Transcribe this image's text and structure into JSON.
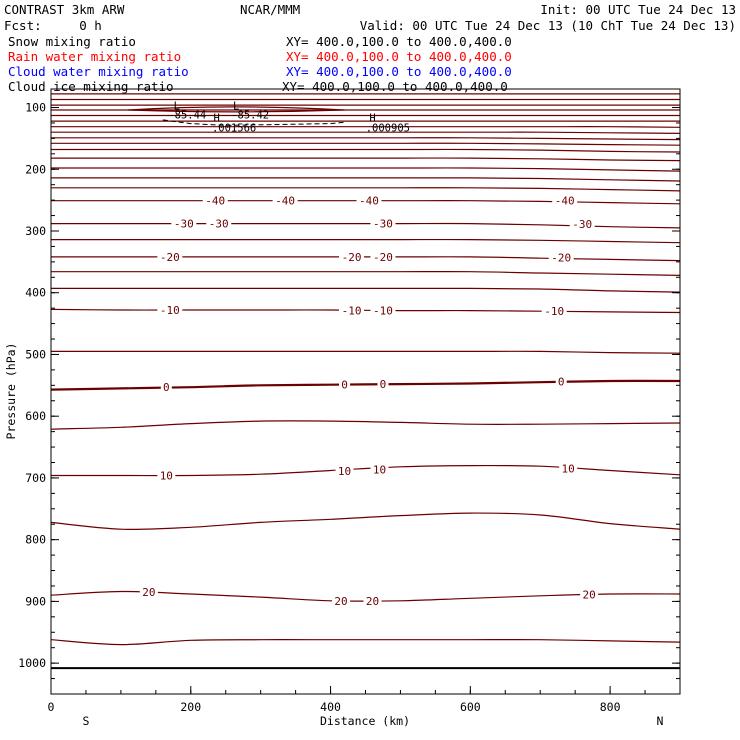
{
  "header": {
    "model": "CONTRAST  3km ARW",
    "center": "NCAR/MMM",
    "init": "Init: 00 UTC Tue 24 Dec 13",
    "fcst": "Fcst:     0 h",
    "valid": "Valid: 00 UTC Tue 24 Dec 13 (10 ChT Tue 24 Dec 13)",
    "fields": [
      {
        "name": "Snow mixing ratio",
        "xy": "XY= 400.0,100.0 to 400.0,400.0",
        "color": "#000000"
      },
      {
        "name": "Rain water mixing ratio",
        "xy": "XY= 400.0,100.0 to 400.0,400.0",
        "color": "#ff0000"
      },
      {
        "name": "Cloud water mixing ratio",
        "xy": "XY= 400.0,100.0 to 400.0,400.0",
        "color": "#0000ff"
      },
      {
        "name": "Cloud ice mixing ratio",
        "xy": "XY= 400.0,100.0 to 400.0,400.0",
        "color": "#000000"
      }
    ]
  },
  "colors": {
    "contour": "#6b0000",
    "axis": "#000000"
  },
  "chart_data": {
    "type": "line",
    "xlabel": "Distance (km)",
    "ylabel": "Pressure (hPa)",
    "xlim": [
      0,
      900
    ],
    "ylim": [
      1050,
      70
    ],
    "x_ticks": [
      "0",
      "200",
      "400",
      "600",
      "800"
    ],
    "x_tick_values": [
      0,
      200,
      400,
      600,
      800
    ],
    "y_ticks": [
      "100",
      "200",
      "300",
      "400",
      "500",
      "600",
      "700",
      "800",
      "900",
      "1000"
    ],
    "y_tick_values": [
      100,
      200,
      300,
      400,
      500,
      600,
      700,
      800,
      900,
      1000
    ],
    "direction_labels": {
      "left": "S",
      "right": "N"
    },
    "surface_pressure": 1008,
    "isotherm_x": [
      0,
      100,
      200,
      300,
      400,
      500,
      600,
      700,
      800,
      900
    ],
    "isotherms": [
      {
        "label": "",
        "p": [
          78,
          78,
          78,
          78,
          78,
          78,
          78,
          78,
          78,
          78
        ]
      },
      {
        "label": "",
        "p": [
          87,
          87,
          87,
          87,
          87,
          87,
          87,
          87,
          87,
          87
        ]
      },
      {
        "label": "",
        "p": [
          96,
          96,
          96,
          96,
          96,
          96,
          96,
          96,
          96,
          96
        ]
      },
      {
        "label": "",
        "p": [
          104,
          104,
          104,
          104,
          104,
          104,
          104,
          104,
          104,
          104
        ]
      },
      {
        "label": "",
        "p": [
          113,
          113,
          113,
          113,
          113,
          113,
          113,
          113,
          113,
          113
        ]
      },
      {
        "label": "",
        "p": [
          122,
          122,
          122,
          122,
          122,
          122,
          122,
          122,
          122,
          122
        ]
      },
      {
        "label": "",
        "p": [
          131,
          131,
          131,
          131,
          131,
          131,
          131,
          131,
          131,
          132
        ]
      },
      {
        "label": "",
        "p": [
          140,
          140,
          140,
          140,
          140,
          140,
          140,
          140,
          141,
          142
        ]
      },
      {
        "label": "",
        "p": [
          149,
          149,
          149,
          149,
          149,
          149,
          149,
          150,
          151,
          152
        ]
      },
      {
        "label": "",
        "p": [
          158,
          158,
          158,
          158,
          158,
          158,
          158,
          159,
          160,
          161
        ]
      },
      {
        "label": "",
        "p": [
          168,
          168,
          168,
          168,
          168,
          168,
          168,
          169,
          171,
          172
        ]
      },
      {
        "label": "",
        "p": [
          182,
          182,
          182,
          182,
          182,
          182,
          182,
          183,
          185,
          186
        ]
      },
      {
        "label": "",
        "p": [
          198,
          198,
          198,
          198,
          198,
          198,
          198,
          199,
          201,
          203
        ]
      },
      {
        "label": "",
        "p": [
          214,
          214,
          214,
          214,
          214,
          214,
          214,
          215,
          217,
          219
        ]
      },
      {
        "label": "",
        "p": [
          230,
          230,
          230,
          230,
          230,
          230,
          230,
          231,
          233,
          235
        ]
      },
      {
        "label": "-40",
        "p": [
          251,
          251,
          251,
          251,
          251,
          251,
          251,
          252,
          254,
          256
        ]
      },
      {
        "label": "-30",
        "p": [
          288,
          288,
          288,
          288,
          288,
          288,
          288,
          290,
          293,
          295
        ]
      },
      {
        "label": "",
        "p": [
          314,
          314,
          314,
          314,
          314,
          314,
          314,
          315,
          317,
          319
        ]
      },
      {
        "label": "-20",
        "p": [
          342,
          342,
          342,
          342,
          342,
          342,
          342,
          344,
          346,
          348
        ]
      },
      {
        "label": "",
        "p": [
          366,
          366,
          366,
          366,
          366,
          366,
          366,
          368,
          370,
          372
        ]
      },
      {
        "label": "",
        "p": [
          393,
          393,
          393,
          393,
          393,
          393,
          393,
          394,
          397,
          399
        ]
      },
      {
        "label": "-10",
        "p": [
          427,
          428,
          428,
          428,
          428,
          429,
          429,
          430,
          431,
          432
        ]
      },
      {
        "label": "",
        "p": [
          495,
          495,
          495,
          495,
          495,
          495,
          495,
          495,
          497,
          498
        ]
      },
      {
        "label": "0",
        "p": [
          557,
          555,
          553,
          550,
          549,
          548,
          547,
          545,
          543,
          543
        ]
      },
      {
        "label": "",
        "p": [
          621,
          618,
          612,
          608,
          608,
          610,
          613,
          613,
          612,
          611
        ]
      },
      {
        "label": "10",
        "p": [
          696,
          696,
          696,
          694,
          688,
          682,
          680,
          681,
          688,
          695
        ]
      },
      {
        "label": "",
        "p": [
          772,
          783,
          780,
          772,
          767,
          761,
          757,
          760,
          774,
          783
        ]
      },
      {
        "label": "20",
        "p": [
          890,
          884,
          888,
          893,
          899,
          899,
          895,
          891,
          888,
          888
        ]
      },
      {
        "label": "",
        "p": [
          962,
          970,
          963,
          962,
          962,
          962,
          962,
          962,
          964,
          966
        ]
      }
    ],
    "labels": [
      {
        "text": "-40",
        "x": 235,
        "p": 251
      },
      {
        "text": "-40",
        "x": 335,
        "p": 251
      },
      {
        "text": "-40",
        "x": 455,
        "p": 251
      },
      {
        "text": "-40",
        "x": 735,
        "p": 251
      },
      {
        "text": "-30",
        "x": 190,
        "p": 288
      },
      {
        "text": "-30",
        "x": 240,
        "p": 288
      },
      {
        "text": "-30",
        "x": 475,
        "p": 288
      },
      {
        "text": "-30",
        "x": 760,
        "p": 289
      },
      {
        "text": "-20",
        "x": 170,
        "p": 342
      },
      {
        "text": "-20",
        "x": 430,
        "p": 342
      },
      {
        "text": "-20",
        "x": 475,
        "p": 342
      },
      {
        "text": "-20",
        "x": 730,
        "p": 343
      },
      {
        "text": "-10",
        "x": 170,
        "p": 428
      },
      {
        "text": "-10",
        "x": 430,
        "p": 429
      },
      {
        "text": "-10",
        "x": 475,
        "p": 429
      },
      {
        "text": "-10",
        "x": 720,
        "p": 430
      },
      {
        "text": "0",
        "x": 165,
        "p": 553
      },
      {
        "text": "0",
        "x": 420,
        "p": 549
      },
      {
        "text": "0",
        "x": 475,
        "p": 548
      },
      {
        "text": "0",
        "x": 730,
        "p": 544
      },
      {
        "text": "10",
        "x": 165,
        "p": 696
      },
      {
        "text": "10",
        "x": 420,
        "p": 689
      },
      {
        "text": "10",
        "x": 470,
        "p": 686
      },
      {
        "text": "10",
        "x": 740,
        "p": 685
      },
      {
        "text": "20",
        "x": 140,
        "p": 885
      },
      {
        "text": "20",
        "x": 415,
        "p": 899
      },
      {
        "text": "20",
        "x": 460,
        "p": 899
      },
      {
        "text": "20",
        "x": 770,
        "p": 889
      }
    ],
    "marks": [
      {
        "text": "L",
        "x": 180,
        "p": 97
      },
      {
        "text": "L",
        "x": 265,
        "p": 97
      },
      {
        "text": "-85.44",
        "x": 195,
        "p": 111
      },
      {
        "text": "-85.42",
        "x": 285,
        "p": 111
      },
      {
        "text": "H",
        "x": 237,
        "p": 116
      },
      {
        "text": "H",
        "x": 460,
        "p": 116
      },
      {
        "text": ".001566",
        "x": 262,
        "p": 132
      },
      {
        "text": ".000905",
        "x": 482,
        "p": 132
      }
    ],
    "dashed_x": [
      160,
      200,
      250,
      300,
      350,
      400,
      420
    ],
    "dashed_p": [
      120,
      126,
      129,
      128,
      127,
      126,
      124
    ]
  }
}
